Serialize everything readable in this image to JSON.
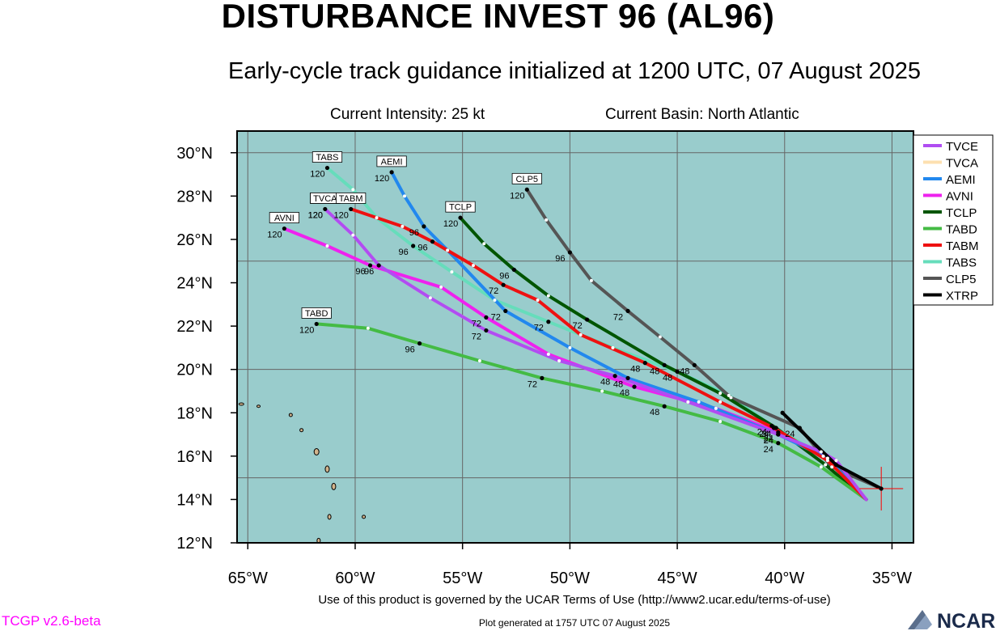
{
  "title": "DISTURBANCE INVEST 96 (AL96)",
  "subtitle": "Early-cycle track guidance initialized at 1200 UTC, 07 August 2025",
  "info": {
    "intensity": "Current Intensity: 25 kt",
    "basin": "Current Basin: North Atlantic"
  },
  "footer": {
    "terms": "Use of this product is governed by the UCAR Terms of Use (http://www2.ucar.edu/terms-of-use)",
    "generated": "Plot generated at 1757 UTC   07 August 2025",
    "version": "TCGP v2.6-beta",
    "logo": "NCAR"
  },
  "colors": {
    "ocean": "#99cccc",
    "land": "#d2b48c",
    "grid": "#666666",
    "current_marker": "#ff0000"
  },
  "map": {
    "lon_range": [
      -65.5,
      -34
    ],
    "lat_range": [
      12,
      31
    ],
    "lon_ticks": [
      {
        "value": -65,
        "label": "65°W"
      },
      {
        "value": -60,
        "label": "60°W"
      },
      {
        "value": -55,
        "label": "55°W"
      },
      {
        "value": -50,
        "label": "50°W"
      },
      {
        "value": -45,
        "label": "45°W"
      },
      {
        "value": -40,
        "label": "40°W"
      },
      {
        "value": -35,
        "label": "35°W"
      }
    ],
    "lat_ticks": [
      {
        "value": 12,
        "label": "12°N"
      },
      {
        "value": 14,
        "label": "14°N"
      },
      {
        "value": 16,
        "label": "16°N"
      },
      {
        "value": 18,
        "label": "18°N"
      },
      {
        "value": 20,
        "label": "20°N"
      },
      {
        "value": 22,
        "label": "22°N"
      },
      {
        "value": 24,
        "label": "24°N"
      },
      {
        "value": 26,
        "label": "26°N"
      },
      {
        "value": 28,
        "label": "28°N"
      },
      {
        "value": 30,
        "label": "30°N"
      }
    ],
    "gridlines": {
      "lon": [
        -65,
        -60,
        -55,
        -50,
        -45,
        -40,
        -35
      ],
      "lat": [
        15,
        20,
        25,
        30
      ]
    },
    "current_position": {
      "lon": -35.5,
      "lat": 14.5
    }
  },
  "chart_data": {
    "type": "line",
    "x_axis": "longitude",
    "y_axis": "latitude",
    "series": [
      {
        "name": "TVCE",
        "color": "#b04df2",
        "points": [
          [
            -36.2,
            14.0
          ],
          [
            -37.6,
            15.8
          ],
          [
            -38.3,
            16.2
          ],
          [
            -40.3,
            17.0
          ],
          [
            -44.5,
            18.5
          ],
          [
            -47.9,
            19.7
          ],
          [
            -50.5,
            20.4
          ],
          [
            -53.9,
            21.8
          ],
          [
            -56.5,
            23.3
          ],
          [
            -58.9,
            24.8
          ],
          [
            -60.1,
            26.2
          ],
          [
            -61.4,
            27.4
          ]
        ],
        "labels": [
          {
            "i": 3,
            "text": "24"
          },
          {
            "i": 5,
            "text": "48"
          },
          {
            "i": 7,
            "text": "72"
          },
          {
            "i": 9,
            "text": "96"
          },
          {
            "i": 11,
            "text": "120"
          }
        ]
      },
      {
        "name": "TVCA",
        "color": "#fde0b0",
        "points": [
          [
            -36.2,
            14.0
          ],
          [
            -37.6,
            15.8
          ],
          [
            -38.3,
            16.2
          ],
          [
            -40.3,
            17.0
          ],
          [
            -44.5,
            18.5
          ],
          [
            -47.9,
            19.7
          ],
          [
            -50.5,
            20.4
          ],
          [
            -53.9,
            21.8
          ],
          [
            -56.5,
            23.3
          ],
          [
            -58.9,
            24.8
          ],
          [
            -60.1,
            26.2
          ],
          [
            -61.4,
            27.4
          ]
        ],
        "labels": [
          {
            "i": 11,
            "text": "120"
          }
        ]
      },
      {
        "name": "AEMI",
        "color": "#2288ee",
        "points": [
          [
            -36.2,
            14.0
          ],
          [
            -38.0,
            15.9
          ],
          [
            -40.3,
            17.0
          ],
          [
            -44.0,
            18.5
          ],
          [
            -47.3,
            19.6
          ],
          [
            -50.0,
            21.0
          ],
          [
            -53.0,
            22.7
          ],
          [
            -55.7,
            25.5
          ],
          [
            -56.8,
            26.6
          ],
          [
            -57.7,
            28.0
          ],
          [
            -58.3,
            29.1
          ]
        ],
        "labels": [
          {
            "i": 2,
            "text": "24"
          },
          {
            "i": 4,
            "text": "48"
          },
          {
            "i": 6,
            "text": "72"
          },
          {
            "i": 8,
            "text": "96"
          },
          {
            "i": 10,
            "text": "120"
          }
        ]
      },
      {
        "name": "AVNI",
        "color": "#ee22ee",
        "points": [
          [
            -36.2,
            14.0
          ],
          [
            -38.0,
            15.9
          ],
          [
            -40.3,
            17.1
          ],
          [
            -43.2,
            18.2
          ],
          [
            -47.0,
            19.2
          ],
          [
            -51.0,
            20.7
          ],
          [
            -53.9,
            22.4
          ],
          [
            -56.0,
            23.8
          ],
          [
            -59.3,
            24.8
          ],
          [
            -61.3,
            25.7
          ],
          [
            -63.3,
            26.5
          ]
        ],
        "labels": [
          {
            "i": 2,
            "text": "24"
          },
          {
            "i": 4,
            "text": "48"
          },
          {
            "i": 6,
            "text": "72"
          },
          {
            "i": 8,
            "text": "96"
          },
          {
            "i": 10,
            "text": "120"
          }
        ]
      },
      {
        "name": "TCLP",
        "color": "#005500",
        "points": [
          [
            -36.2,
            14.0
          ],
          [
            -38.1,
            15.6
          ],
          [
            -40.4,
            17.3
          ],
          [
            -43.0,
            18.9
          ],
          [
            -45.6,
            20.2
          ],
          [
            -49.2,
            22.3
          ],
          [
            -51.0,
            23.4
          ],
          [
            -52.6,
            24.6
          ],
          [
            -54.0,
            25.8
          ],
          [
            -55.1,
            27.0
          ]
        ],
        "labels": [
          {
            "i": 2,
            "text": "24"
          },
          {
            "i": 4,
            "text": "48"
          },
          {
            "i": 5,
            "text": "72"
          },
          {
            "i": 7,
            "text": "96"
          },
          {
            "i": 9,
            "text": "120"
          }
        ]
      },
      {
        "name": "TABD",
        "color": "#44bb44",
        "points": [
          [
            -36.2,
            14.0
          ],
          [
            -38.3,
            15.5
          ],
          [
            -40.3,
            16.6
          ],
          [
            -43.0,
            17.6
          ],
          [
            -45.6,
            18.3
          ],
          [
            -48.5,
            19.0
          ],
          [
            -51.3,
            19.6
          ],
          [
            -54.2,
            20.4
          ],
          [
            -57.0,
            21.2
          ],
          [
            -59.4,
            21.9
          ],
          [
            -61.8,
            22.1
          ]
        ],
        "labels": [
          {
            "i": 2,
            "text": "24"
          },
          {
            "i": 4,
            "text": "48"
          },
          {
            "i": 6,
            "text": "72"
          },
          {
            "i": 8,
            "text": "96"
          },
          {
            "i": 10,
            "text": "120"
          }
        ]
      },
      {
        "name": "TABM",
        "color": "#ee1111",
        "points": [
          [
            -36.2,
            14.0
          ],
          [
            -38.0,
            15.8
          ],
          [
            -40.5,
            17.3
          ],
          [
            -43.0,
            18.5
          ],
          [
            -46.5,
            20.3
          ],
          [
            -49.5,
            21.6
          ],
          [
            -51.5,
            23.2
          ],
          [
            -53.1,
            23.9
          ],
          [
            -54.5,
            24.8
          ],
          [
            -56.4,
            25.9
          ],
          [
            -57.8,
            26.6
          ],
          [
            -60.2,
            27.4
          ]
        ],
        "labels": [
          {
            "i": 2,
            "text": "24"
          },
          {
            "i": 4,
            "text": "48"
          },
          {
            "i": 7,
            "text": "72"
          },
          {
            "i": 9,
            "text": "96"
          },
          {
            "i": 11,
            "text": "120"
          }
        ]
      },
      {
        "name": "TABS",
        "color": "#66ddbb",
        "points": [
          [
            -36.2,
            14.0
          ],
          [
            -38.2,
            16.0
          ],
          [
            -40.6,
            17.4
          ],
          [
            -42.6,
            18.8
          ],
          [
            -45.0,
            19.9
          ],
          [
            -48.0,
            21.0
          ],
          [
            -51.0,
            22.2
          ],
          [
            -53.5,
            23.2
          ],
          [
            -55.5,
            24.5
          ],
          [
            -57.3,
            25.7
          ],
          [
            -59.0,
            27.0
          ],
          [
            -60.1,
            28.3
          ],
          [
            -61.3,
            29.3
          ]
        ],
        "labels": [
          {
            "i": 2,
            "text": "24"
          },
          {
            "i": 4,
            "text": "48"
          },
          {
            "i": 6,
            "text": "72"
          },
          {
            "i": 9,
            "text": "96"
          },
          {
            "i": 12,
            "text": "120"
          }
        ]
      },
      {
        "name": "CLP5",
        "color": "#555555",
        "points": [
          [
            -35.5,
            14.5
          ],
          [
            -37.8,
            15.5
          ],
          [
            -39.3,
            17.3
          ],
          [
            -42.5,
            18.7
          ],
          [
            -44.2,
            20.2
          ],
          [
            -45.8,
            21.5
          ],
          [
            -47.3,
            22.7
          ],
          [
            -49.0,
            24.1
          ],
          [
            -50.0,
            25.4
          ],
          [
            -51.1,
            26.9
          ],
          [
            -52.0,
            28.3
          ]
        ],
        "labels": [
          {
            "i": 2,
            "text": "24"
          },
          {
            "i": 4,
            "text": "48"
          },
          {
            "i": 6,
            "text": "72"
          },
          {
            "i": 8,
            "text": "96"
          },
          {
            "i": 10,
            "text": "120"
          }
        ]
      },
      {
        "name": "XTRP",
        "color": "#000000",
        "points": [
          [
            -35.5,
            14.5
          ],
          [
            -37.6,
            15.6
          ],
          [
            -40.1,
            18.0
          ]
        ],
        "labels": []
      }
    ]
  }
}
